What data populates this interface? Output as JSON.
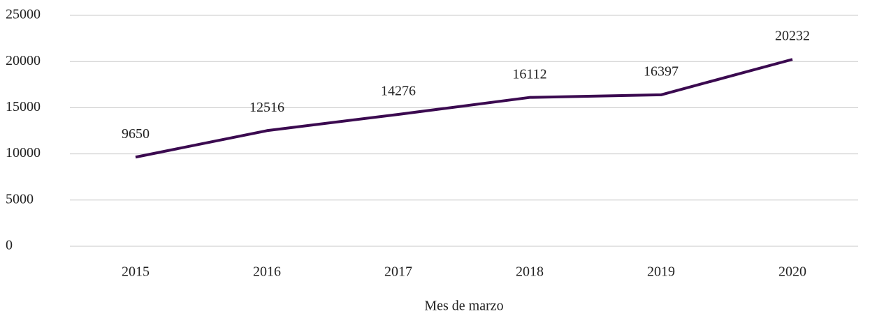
{
  "chart_data": {
    "type": "line",
    "categories": [
      "2015",
      "2016",
      "2017",
      "2018",
      "2019",
      "2020"
    ],
    "series": [
      {
        "color": "#3b0a50",
        "values": [
          9650,
          12516,
          14276,
          16112,
          16397,
          20232
        ]
      }
    ],
    "ylim": [
      0,
      25000
    ],
    "yticks": [
      0,
      5000,
      10000,
      15000,
      20000,
      25000
    ],
    "x_label": "Mes de marzo",
    "grid": true
  }
}
